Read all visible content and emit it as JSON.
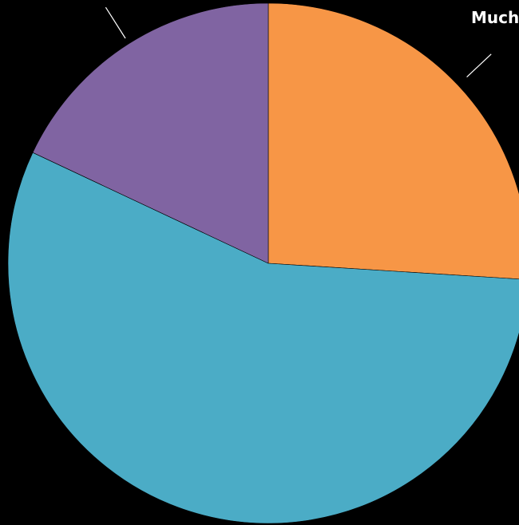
{
  "chart_data": {
    "type": "pie",
    "title": "",
    "slices": [
      {
        "label": "Much",
        "value": 26,
        "color": "#F79646"
      },
      {
        "label": "",
        "value": 56,
        "color": "#4BACC6"
      },
      {
        "label": "",
        "value": 18,
        "color": "#8064A2"
      }
    ],
    "start_angle_deg": 0,
    "direction": "clockwise",
    "background": "#000000"
  }
}
